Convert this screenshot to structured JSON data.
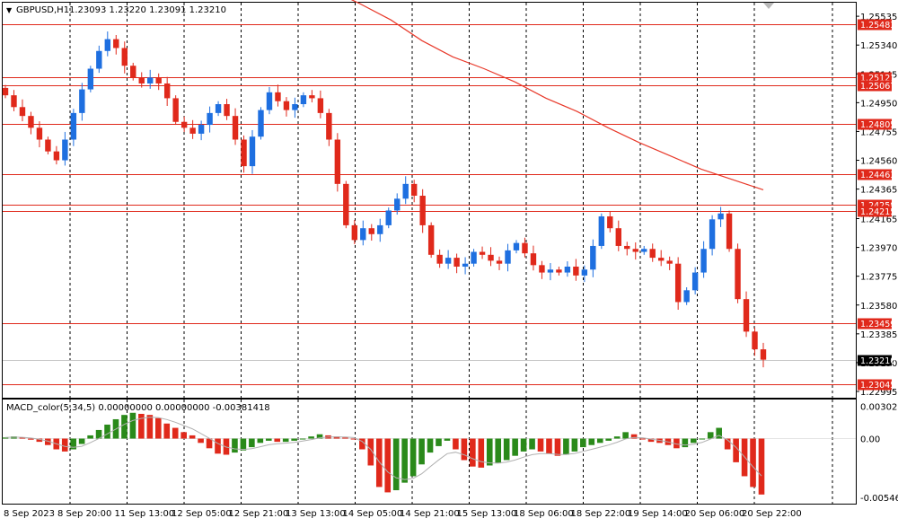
{
  "header": {
    "arrow": "▼",
    "symbol": "GBPUSD,H1",
    "ohlc": "1.23093 1.23220 1.23091 1.23210"
  },
  "macd_header": "MACD_color(5,34,5) 0.00000000 0.00000000 -0.00381418",
  "colors": {
    "up": "#1e6fe0",
    "down": "#e0291b",
    "level": "#e0291b",
    "ma": "#e8392a",
    "macd_up": "#2a8a1a",
    "macd_down": "#e0291b",
    "signal": "#b0b0b0",
    "grid": "#000000",
    "current": "#c8c8c8"
  },
  "chart_data": [
    {
      "type": "candlestick",
      "title": "GBPUSD,H1",
      "y_ticks": [
        "1.25535",
        "1.25340",
        "1.25145",
        "1.24950",
        "1.24755",
        "1.24560",
        "1.24365",
        "1.24165",
        "1.23970",
        "1.23775",
        "1.23580",
        "1.23385",
        "1.23190",
        "1.22995"
      ],
      "ylim": [
        1.22995,
        1.2556
      ],
      "x_ticks": [
        "8 Sep 2023",
        "8 Sep 20:00",
        "11 Sep 13:00",
        "12 Sep 05:00",
        "12 Sep 21:00",
        "13 Sep 13:00",
        "14 Sep 05:00",
        "14 Sep 21:00",
        "15 Sep 13:00",
        "18 Sep 06:00",
        "18 Sep 22:00",
        "19 Sep 14:00",
        "20 Sep 06:00",
        "20 Sep 22:00"
      ],
      "levels": [
        "1.25483",
        "1.25121",
        "1.25067",
        "1.24805",
        "1.24463",
        "1.24258",
        "1.24215",
        "1.23459",
        "1.23045"
      ],
      "current_price": "1.23210",
      "ma_series": [
        1.2614,
        1.2604,
        1.2594,
        1.2583,
        1.2572,
        1.2562,
        1.2551,
        1.2537,
        1.2526,
        1.2518,
        1.2509,
        1.2498,
        1.2489,
        1.2478,
        1.2468,
        1.2459,
        1.245,
        1.2443,
        1.2436
      ],
      "candles_close": [
        1.25,
        1.2492,
        1.2486,
        1.2478,
        1.247,
        1.2462,
        1.2456,
        1.247,
        1.2488,
        1.2504,
        1.2518,
        1.253,
        1.2538,
        1.2532,
        1.252,
        1.2512,
        1.2508,
        1.2512,
        1.2508,
        1.2498,
        1.2482,
        1.2478,
        1.2474,
        1.248,
        1.2488,
        1.2494,
        1.2486,
        1.247,
        1.2452,
        1.2472,
        1.249,
        1.2502,
        1.2496,
        1.249,
        1.2494,
        1.25,
        1.2498,
        1.2488,
        1.247,
        1.244,
        1.2412,
        1.2402,
        1.241,
        1.2406,
        1.2412,
        1.2422,
        1.243,
        1.244,
        1.2432,
        1.2412,
        1.2392,
        1.2386,
        1.239,
        1.2384,
        1.2386,
        1.2394,
        1.2392,
        1.2388,
        1.2386,
        1.2395,
        1.24,
        1.2393,
        1.2385,
        1.238,
        1.2382,
        1.238,
        1.2384,
        1.2378,
        1.2382,
        1.2398,
        1.2418,
        1.241,
        1.2398,
        1.2396,
        1.2394,
        1.2396,
        1.239,
        1.2388,
        1.2386,
        1.236,
        1.2368,
        1.238,
        1.2396,
        1.2416,
        1.242,
        1.2396,
        1.2362,
        1.234,
        1.2328,
        1.2321
      ],
      "macd_hist": [
        0.0001,
        0.0002,
        0.0001,
        -0.0001,
        -0.0003,
        -0.0006,
        -0.001,
        -0.0012,
        -0.001,
        -0.0005,
        0.0003,
        0.0008,
        0.0013,
        0.0018,
        0.0022,
        0.0024,
        0.0023,
        0.0022,
        0.0019,
        0.0014,
        0.001,
        0.0006,
        0.0003,
        -0.0004,
        -0.0009,
        -0.0014,
        -0.0015,
        -0.0013,
        -0.0011,
        -0.0008,
        -0.0004,
        -0.0002,
        -0.0003,
        -0.0003,
        -0.0002,
        0.0,
        0.0002,
        0.0004,
        0.0003,
        0.0002,
        0.0001,
        0.0,
        -0.001,
        -0.0025,
        -0.0045,
        -0.005,
        -0.0048,
        -0.0041,
        -0.0035,
        -0.0024,
        -0.0013,
        -0.0007,
        -0.0002,
        -0.001,
        -0.002,
        -0.0026,
        -0.0027,
        -0.0025,
        -0.0023,
        -0.002,
        -0.0016,
        -0.0012,
        -0.001,
        -0.0012,
        -0.0014,
        -0.0016,
        -0.0015,
        -0.0012,
        -0.0008,
        -0.0006,
        -0.0004,
        -0.0002,
        0.0002,
        0.0006,
        0.0004,
        0.0,
        -0.0003,
        -0.0004,
        -0.0006,
        -0.0009,
        -0.0008,
        -0.0004,
        0.0,
        0.0006,
        0.001,
        -0.001,
        -0.0022,
        -0.0035,
        -0.0045,
        -0.0052
      ],
      "macd_ticks": [
        "0.00302112",
        "0.00",
        "-0.00546"
      ],
      "macd_ylim": [
        -0.0058,
        0.0033
      ]
    }
  ]
}
